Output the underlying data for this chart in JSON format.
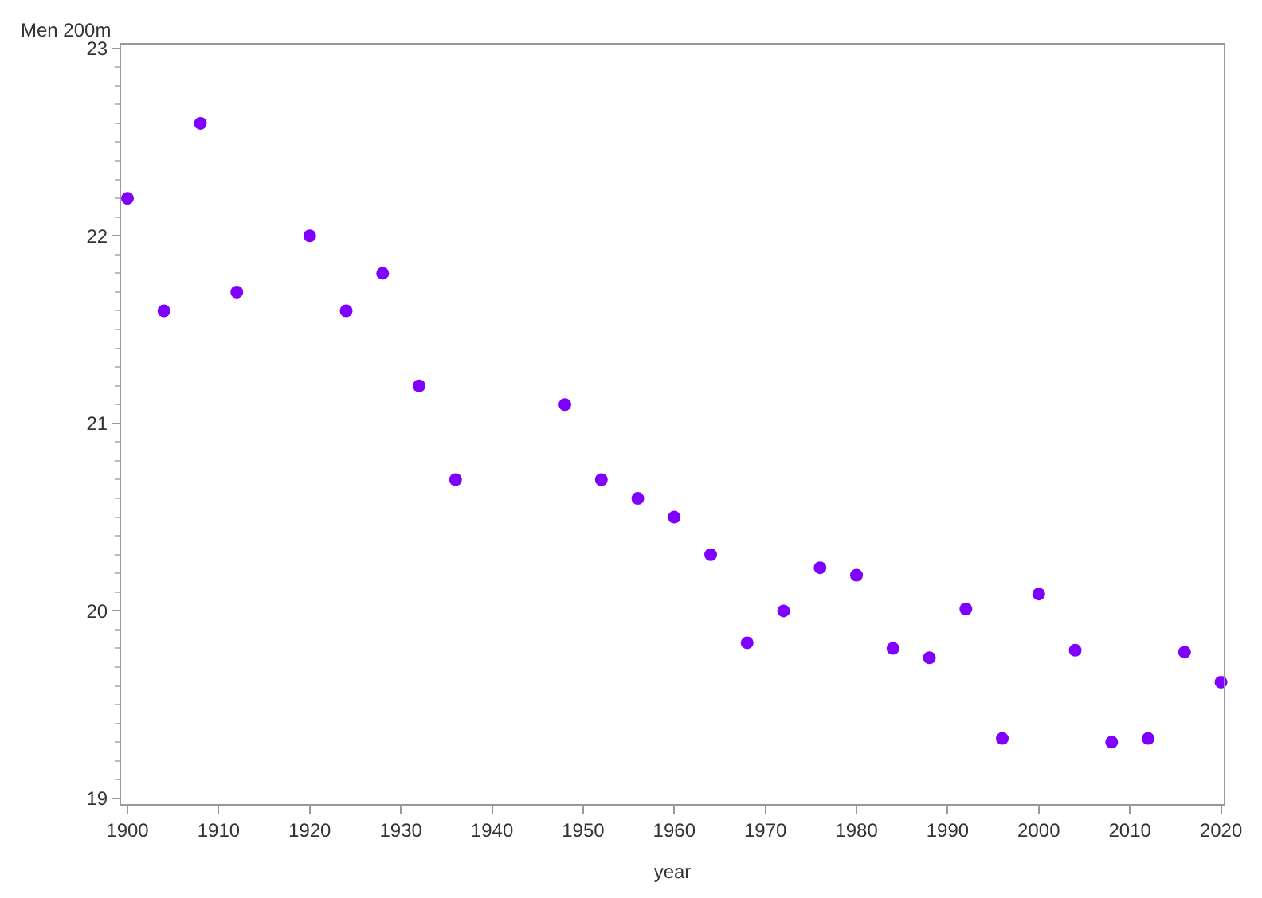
{
  "chart_data": {
    "type": "scatter",
    "ylabel": "Men 200m",
    "xlabel": "year",
    "x": [
      1900,
      1904,
      1908,
      1912,
      1920,
      1924,
      1928,
      1932,
      1936,
      1948,
      1952,
      1956,
      1960,
      1964,
      1968,
      1972,
      1976,
      1980,
      1984,
      1988,
      1992,
      1996,
      2000,
      2004,
      2008,
      2012,
      2016,
      2020
    ],
    "series": [
      {
        "color": "#7f00ff",
        "values": [
          22.2,
          21.6,
          22.6,
          21.7,
          22.0,
          21.6,
          21.8,
          21.2,
          20.7,
          21.1,
          20.7,
          20.6,
          20.5,
          20.3,
          19.83,
          20.0,
          20.23,
          20.19,
          19.8,
          19.75,
          20.01,
          19.32,
          20.09,
          19.79,
          19.3,
          19.32,
          19.78,
          19.62
        ]
      }
    ],
    "xlim": [
      1899.3,
      2020.3
    ],
    "xticks": [
      1900,
      1910,
      1920,
      1930,
      1940,
      1950,
      1960,
      1970,
      1980,
      1990,
      2000,
      2010,
      2020
    ],
    "ylim": [
      18.97,
      23.02
    ],
    "yticks": [
      19,
      20,
      21,
      22,
      23
    ],
    "marker": "circle",
    "grid": false,
    "legend": false
  }
}
